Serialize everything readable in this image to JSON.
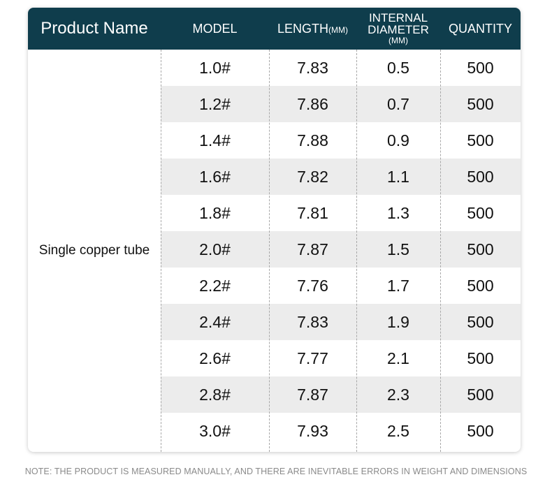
{
  "table": {
    "headers": {
      "product_name": "Product Name",
      "model": "MODEL",
      "length": "LENGTH",
      "length_unit": "(MM)",
      "diameter_line1": "INTERNAL",
      "diameter_line2": "DIAMETER",
      "diameter_unit": "(MM)",
      "quantity": "QUANTITY"
    },
    "product_name": "Single copper tube",
    "rows": [
      {
        "model": "1.0#",
        "length": "7.83",
        "diameter": "0.5",
        "quantity": "500"
      },
      {
        "model": "1.2#",
        "length": "7.86",
        "diameter": "0.7",
        "quantity": "500"
      },
      {
        "model": "1.4#",
        "length": "7.88",
        "diameter": "0.9",
        "quantity": "500"
      },
      {
        "model": "1.6#",
        "length": "7.82",
        "diameter": "1.1",
        "quantity": "500"
      },
      {
        "model": "1.8#",
        "length": "7.81",
        "diameter": "1.3",
        "quantity": "500"
      },
      {
        "model": "2.0#",
        "length": "7.87",
        "diameter": "1.5",
        "quantity": "500"
      },
      {
        "model": "2.2#",
        "length": "7.76",
        "diameter": "1.7",
        "quantity": "500"
      },
      {
        "model": "2.4#",
        "length": "7.83",
        "diameter": "1.9",
        "quantity": "500"
      },
      {
        "model": "2.6#",
        "length": "7.77",
        "diameter": "2.1",
        "quantity": "500"
      },
      {
        "model": "2.8#",
        "length": "7.87",
        "diameter": "2.3",
        "quantity": "500"
      },
      {
        "model": "3.0#",
        "length": "7.93",
        "diameter": "2.5",
        "quantity": "500"
      }
    ]
  },
  "note": "NOTE: THE PRODUCT IS MEASURED MANUALLY, AND THERE ARE INEVITABLE ERRORS IN WEIGHT AND DIMENSIONS",
  "colors": {
    "header_bg": "#0f3d4c",
    "shaded_row": "#ececec",
    "note_text": "#8a8a8a"
  }
}
